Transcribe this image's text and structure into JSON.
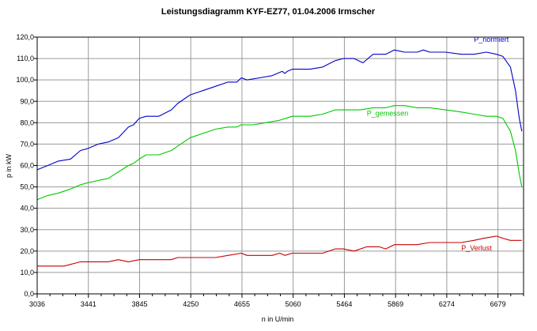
{
  "chart_data": {
    "type": "line",
    "title": "Leistungsdiagramm KYF-EZ77, 01.04.2006 Irmscher",
    "xlabel": "n in U/min",
    "ylabel": "p in kW",
    "xlim": [
      3036,
      6894
    ],
    "ylim": [
      0,
      120
    ],
    "grid": true,
    "x_tick_labels": [
      "3036",
      "3441",
      "3845",
      "4250",
      "4655",
      "5060",
      "5464",
      "5869",
      "6274",
      "6679"
    ],
    "y_tick_labels": [
      "0,0",
      "10,0",
      "20,0",
      "30,0",
      "40,0",
      "50,0",
      "60,0",
      "70,0",
      "80,0",
      "90,0",
      "100,0",
      "110,0",
      "120,0"
    ],
    "series": [
      {
        "name": "P_normiert",
        "color": "#0000c8",
        "points": [
          [
            3036,
            58
          ],
          [
            3120,
            60
          ],
          [
            3200,
            62
          ],
          [
            3300,
            63
          ],
          [
            3380,
            67
          ],
          [
            3441,
            68
          ],
          [
            3520,
            70
          ],
          [
            3600,
            71
          ],
          [
            3680,
            73
          ],
          [
            3760,
            78
          ],
          [
            3800,
            79
          ],
          [
            3845,
            82
          ],
          [
            3900,
            83
          ],
          [
            4000,
            83
          ],
          [
            4100,
            86
          ],
          [
            4150,
            89
          ],
          [
            4200,
            91
          ],
          [
            4250,
            93
          ],
          [
            4350,
            95
          ],
          [
            4450,
            97
          ],
          [
            4550,
            99
          ],
          [
            4620,
            99
          ],
          [
            4655,
            101
          ],
          [
            4700,
            100
          ],
          [
            4800,
            101
          ],
          [
            4900,
            102
          ],
          [
            4980,
            104
          ],
          [
            5000,
            103
          ],
          [
            5020,
            104
          ],
          [
            5060,
            105
          ],
          [
            5200,
            105
          ],
          [
            5300,
            106
          ],
          [
            5400,
            109
          ],
          [
            5464,
            110
          ],
          [
            5550,
            110
          ],
          [
            5620,
            108
          ],
          [
            5700,
            112
          ],
          [
            5800,
            112
          ],
          [
            5869,
            114
          ],
          [
            5950,
            113
          ],
          [
            6050,
            113
          ],
          [
            6100,
            114
          ],
          [
            6150,
            113
          ],
          [
            6274,
            113
          ],
          [
            6400,
            112
          ],
          [
            6500,
            112
          ],
          [
            6600,
            113
          ],
          [
            6679,
            112
          ],
          [
            6730,
            111
          ],
          [
            6790,
            106
          ],
          [
            6830,
            95
          ],
          [
            6860,
            82
          ],
          [
            6880,
            76
          ]
        ]
      },
      {
        "name": "P_gemessen",
        "color": "#00c800",
        "points": [
          [
            3036,
            44
          ],
          [
            3120,
            46
          ],
          [
            3200,
            47
          ],
          [
            3300,
            49
          ],
          [
            3380,
            51
          ],
          [
            3441,
            52
          ],
          [
            3520,
            53
          ],
          [
            3600,
            54
          ],
          [
            3680,
            57
          ],
          [
            3760,
            60
          ],
          [
            3800,
            61
          ],
          [
            3845,
            63
          ],
          [
            3900,
            65
          ],
          [
            4000,
            65
          ],
          [
            4100,
            67
          ],
          [
            4150,
            69
          ],
          [
            4200,
            71
          ],
          [
            4250,
            73
          ],
          [
            4350,
            75
          ],
          [
            4450,
            77
          ],
          [
            4550,
            78
          ],
          [
            4620,
            78
          ],
          [
            4655,
            79
          ],
          [
            4750,
            79
          ],
          [
            4850,
            80
          ],
          [
            4950,
            81
          ],
          [
            5060,
            83
          ],
          [
            5200,
            83
          ],
          [
            5300,
            84
          ],
          [
            5400,
            86
          ],
          [
            5464,
            86
          ],
          [
            5600,
            86
          ],
          [
            5700,
            87
          ],
          [
            5800,
            87
          ],
          [
            5869,
            88
          ],
          [
            5950,
            88
          ],
          [
            6050,
            87
          ],
          [
            6150,
            87
          ],
          [
            6274,
            86
          ],
          [
            6400,
            85
          ],
          [
            6500,
            84
          ],
          [
            6600,
            83
          ],
          [
            6679,
            83
          ],
          [
            6730,
            82
          ],
          [
            6790,
            76
          ],
          [
            6830,
            67
          ],
          [
            6860,
            56
          ],
          [
            6880,
            50
          ]
        ]
      },
      {
        "name": "P_Verlust",
        "color": "#c80000",
        "points": [
          [
            3036,
            13
          ],
          [
            3250,
            13
          ],
          [
            3380,
            15
          ],
          [
            3441,
            15
          ],
          [
            3600,
            15
          ],
          [
            3680,
            16
          ],
          [
            3760,
            15
          ],
          [
            3845,
            16
          ],
          [
            3950,
            16
          ],
          [
            4100,
            16
          ],
          [
            4150,
            17
          ],
          [
            4250,
            17
          ],
          [
            4450,
            17
          ],
          [
            4550,
            18
          ],
          [
            4655,
            19
          ],
          [
            4700,
            18
          ],
          [
            4900,
            18
          ],
          [
            4960,
            19
          ],
          [
            5000,
            18
          ],
          [
            5060,
            19
          ],
          [
            5200,
            19
          ],
          [
            5300,
            19
          ],
          [
            5400,
            21
          ],
          [
            5464,
            21
          ],
          [
            5550,
            20
          ],
          [
            5650,
            22
          ],
          [
            5750,
            22
          ],
          [
            5800,
            21
          ],
          [
            5869,
            23
          ],
          [
            5950,
            23
          ],
          [
            6050,
            23
          ],
          [
            6150,
            24
          ],
          [
            6274,
            24
          ],
          [
            6400,
            24
          ],
          [
            6500,
            25
          ],
          [
            6580,
            26
          ],
          [
            6679,
            27
          ],
          [
            6730,
            26
          ],
          [
            6790,
            25
          ],
          [
            6880,
            25
          ]
        ]
      }
    ]
  },
  "colors": {
    "background": "#ffffff",
    "grid": "#9a9a9a",
    "frame": "#000000"
  }
}
